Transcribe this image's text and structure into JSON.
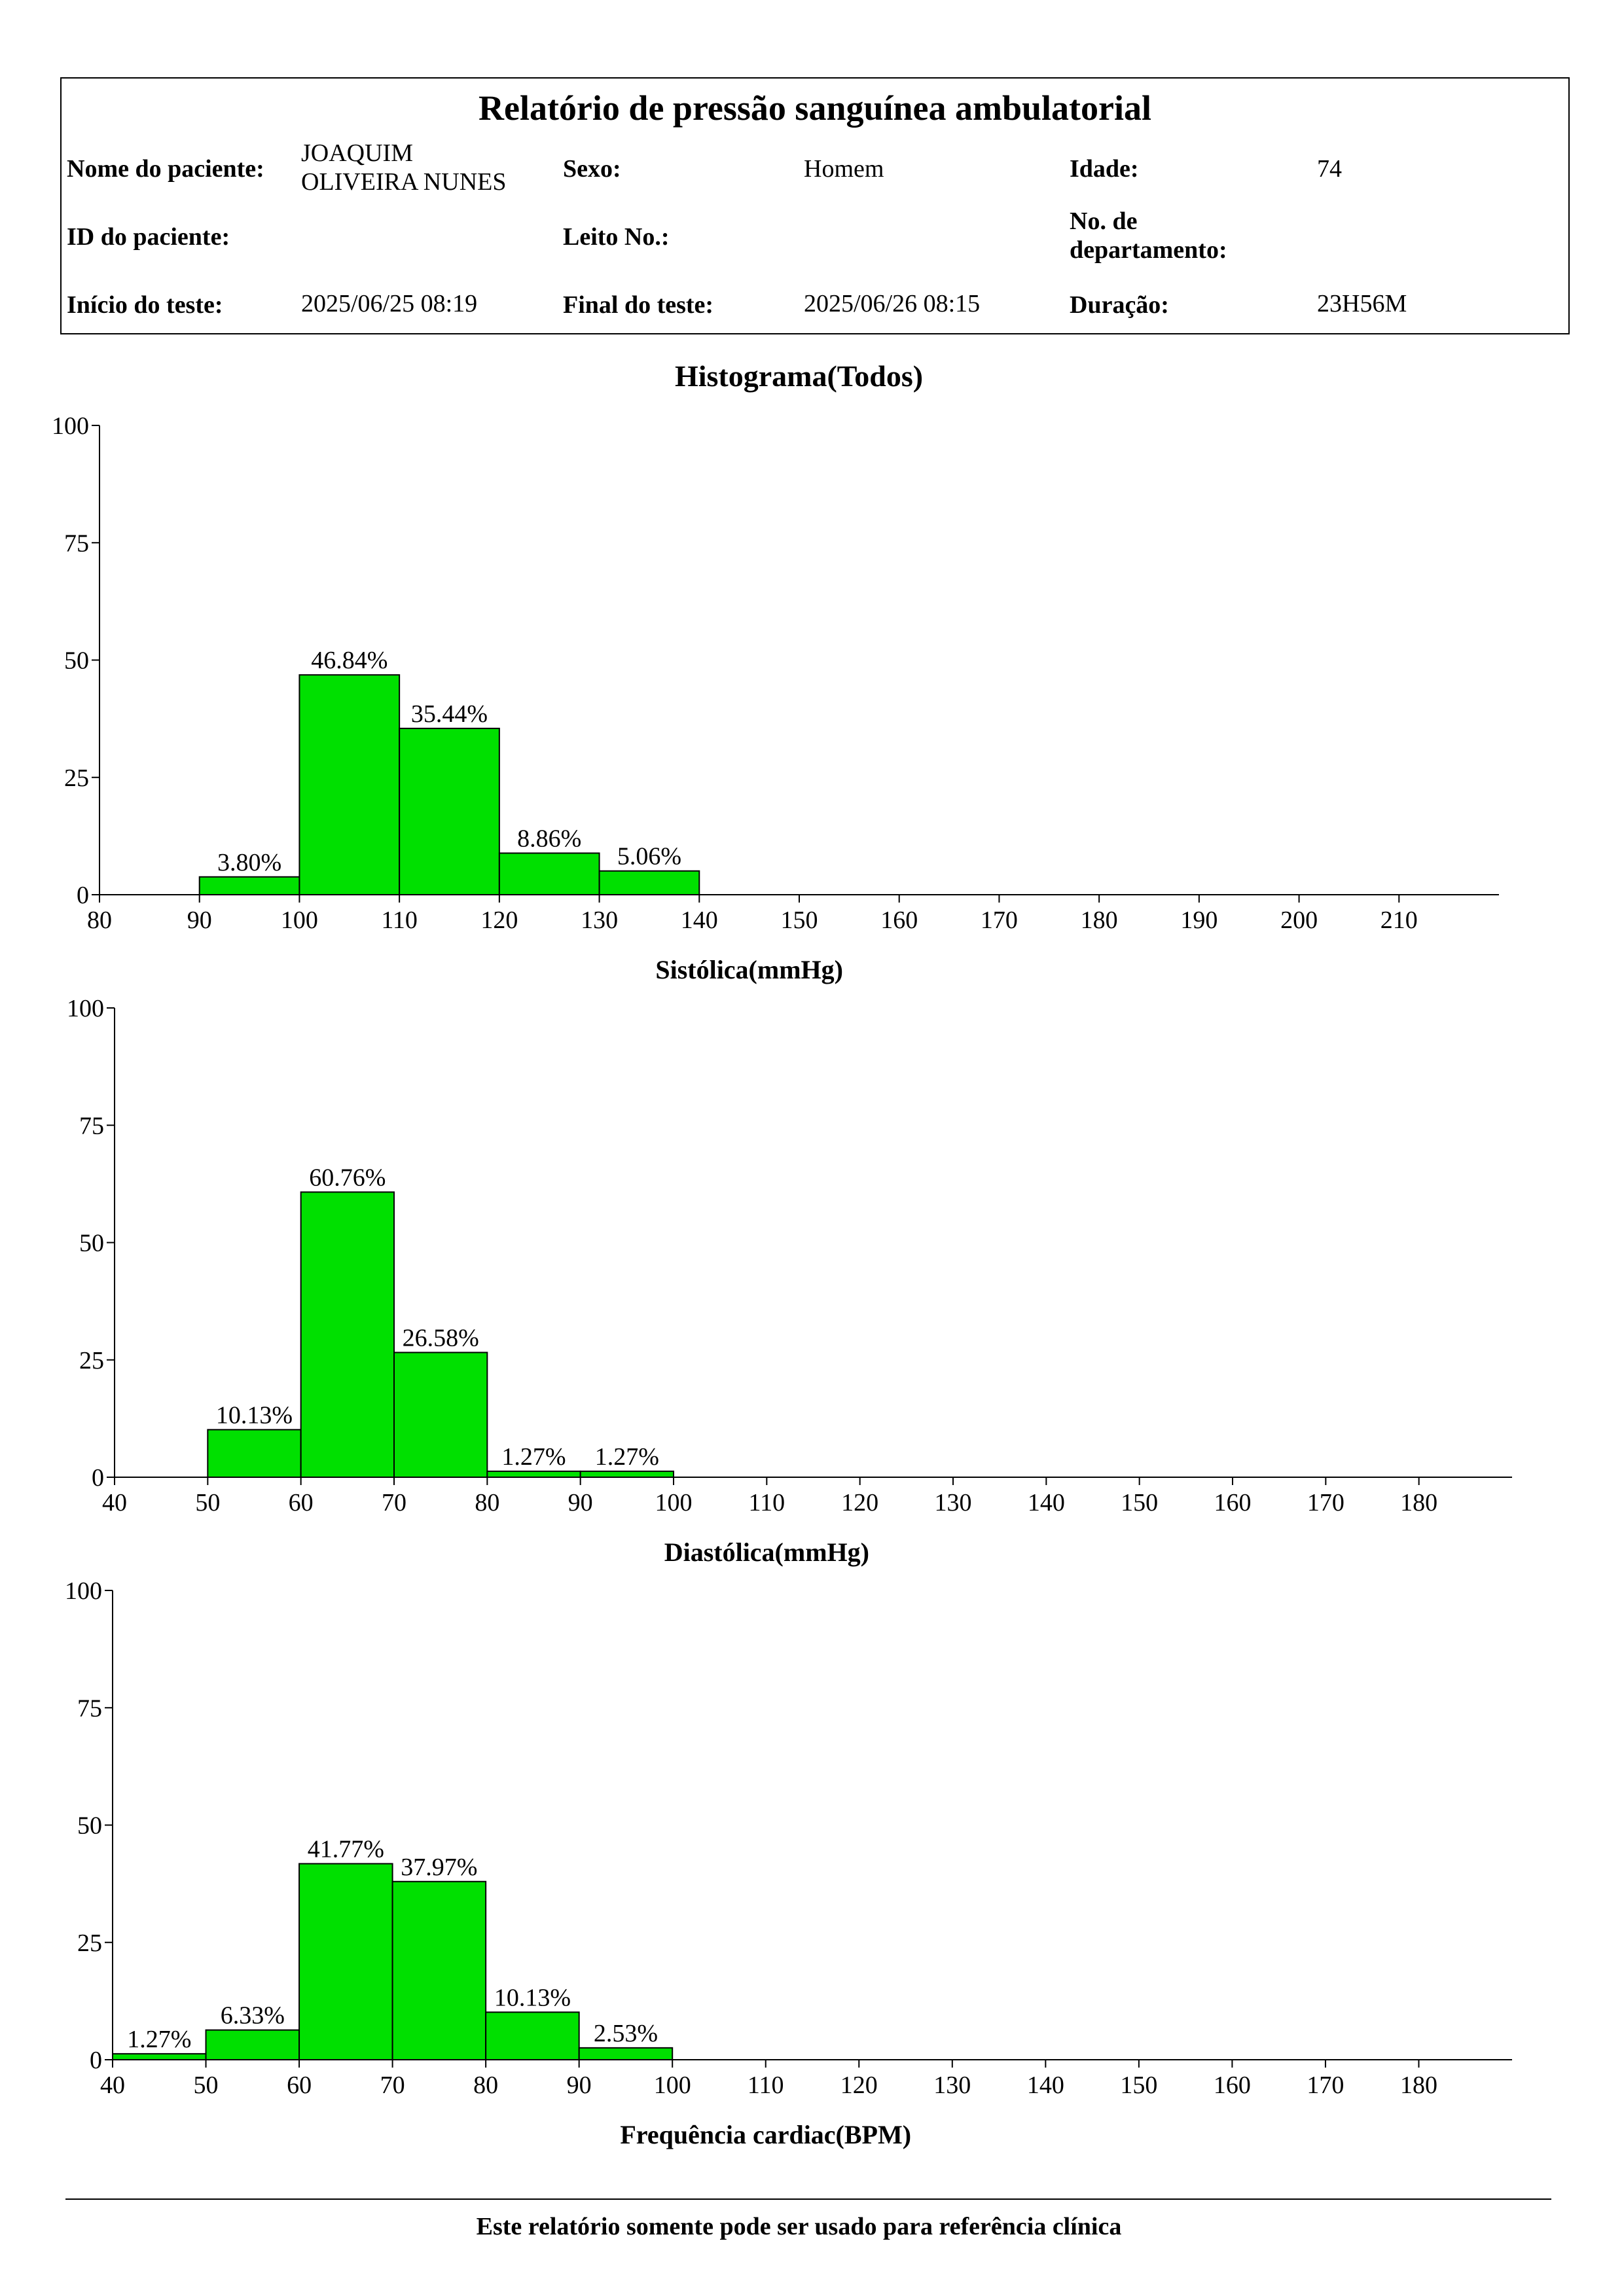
{
  "report": {
    "title": "Relatório de pressão sanguínea ambulatorial",
    "patient_name_label": "Nome do paciente:",
    "patient_name": "JOAQUIM\nOLIVEIRA NUNES",
    "sex_label": "Sexo:",
    "sex": "Homem",
    "age_label": "Idade:",
    "age": "74",
    "patient_id_label": "ID do paciente:",
    "patient_id": "",
    "bed_label": "Leito No.:",
    "bed": "",
    "dept_label": "No. de\ndepartamento:",
    "dept": "",
    "start_label": "Início do teste:",
    "start": "2025/06/25 08:19",
    "end_label": "Final do teste:",
    "end": "2025/06/26 08:15",
    "duration_label": "Duração:",
    "duration": "23H56M"
  },
  "histogram_title": "Histograma(Todos)",
  "footer": "Este relatório somente pode ser usado para referência clínica",
  "colors": {
    "bar_fill": "#00e000",
    "bar_stroke": "#000000"
  },
  "chart_data": [
    {
      "type": "bar",
      "xlabel": "Sistólica(mmHg)",
      "ylabel": "",
      "xlim": [
        80,
        220
      ],
      "ylim": [
        0,
        100
      ],
      "xticks": [
        80,
        90,
        100,
        110,
        120,
        130,
        140,
        150,
        160,
        170,
        180,
        190,
        200,
        210
      ],
      "yticks": [
        0,
        25,
        50,
        75,
        100
      ],
      "bins": [
        {
          "from": 90,
          "to": 100,
          "value": 3.8,
          "label": "3.80%"
        },
        {
          "from": 100,
          "to": 110,
          "value": 46.84,
          "label": "46.84%"
        },
        {
          "from": 110,
          "to": 120,
          "value": 35.44,
          "label": "35.44%"
        },
        {
          "from": 120,
          "to": 130,
          "value": 8.86,
          "label": "8.86%"
        },
        {
          "from": 130,
          "to": 140,
          "value": 5.06,
          "label": "5.06%"
        }
      ]
    },
    {
      "type": "bar",
      "xlabel": "Diastólica(mmHg)",
      "ylabel": "",
      "xlim": [
        40,
        190
      ],
      "ylim": [
        0,
        100
      ],
      "xticks": [
        40,
        50,
        60,
        70,
        80,
        90,
        100,
        110,
        120,
        130,
        140,
        150,
        160,
        170,
        180
      ],
      "yticks": [
        0,
        25,
        50,
        75,
        100
      ],
      "bins": [
        {
          "from": 50,
          "to": 60,
          "value": 10.13,
          "label": "10.13%"
        },
        {
          "from": 60,
          "to": 70,
          "value": 60.76,
          "label": "60.76%"
        },
        {
          "from": 70,
          "to": 80,
          "value": 26.58,
          "label": "26.58%"
        },
        {
          "from": 80,
          "to": 90,
          "value": 1.27,
          "label": "1.27%"
        },
        {
          "from": 90,
          "to": 100,
          "value": 1.27,
          "label": "1.27%"
        }
      ]
    },
    {
      "type": "bar",
      "xlabel": "Frequência cardiac(BPM)",
      "ylabel": "",
      "xlim": [
        40,
        190
      ],
      "ylim": [
        0,
        100
      ],
      "xticks": [
        40,
        50,
        60,
        70,
        80,
        90,
        100,
        110,
        120,
        130,
        140,
        150,
        160,
        170,
        180
      ],
      "yticks": [
        0,
        25,
        50,
        75,
        100
      ],
      "bins": [
        {
          "from": 40,
          "to": 50,
          "value": 1.27,
          "label": "1.27%"
        },
        {
          "from": 50,
          "to": 60,
          "value": 6.33,
          "label": "6.33%"
        },
        {
          "from": 60,
          "to": 70,
          "value": 41.77,
          "label": "41.77%"
        },
        {
          "from": 70,
          "to": 80,
          "value": 37.97,
          "label": "37.97%"
        },
        {
          "from": 80,
          "to": 90,
          "value": 10.13,
          "label": "10.13%"
        },
        {
          "from": 90,
          "to": 100,
          "value": 2.53,
          "label": "2.53%"
        }
      ]
    }
  ]
}
